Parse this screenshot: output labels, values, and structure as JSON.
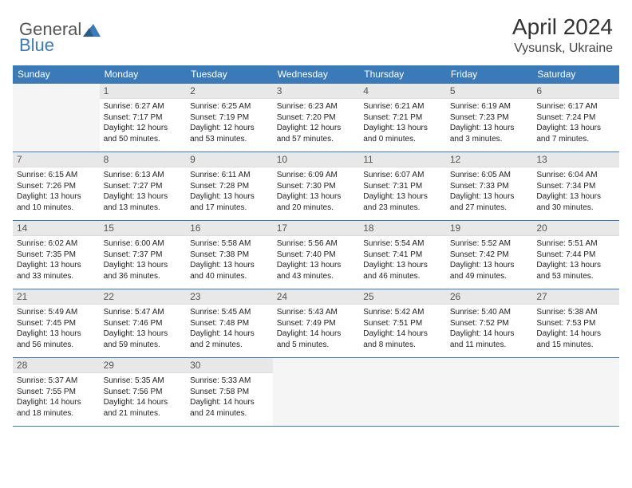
{
  "brand": {
    "part1": "General",
    "part2": "Blue"
  },
  "title": {
    "month_year": "April 2024",
    "location": "Vysunsk, Ukraine"
  },
  "colors": {
    "accent": "#3a7ab8",
    "daynum_bg": "#e8e8e8",
    "text": "#222"
  },
  "weekdays": [
    "Sunday",
    "Monday",
    "Tuesday",
    "Wednesday",
    "Thursday",
    "Friday",
    "Saturday"
  ],
  "weeks": [
    [
      null,
      {
        "n": "1",
        "sr": "Sunrise: 6:27 AM",
        "ss": "Sunset: 7:17 PM",
        "d1": "Daylight: 12 hours",
        "d2": "and 50 minutes."
      },
      {
        "n": "2",
        "sr": "Sunrise: 6:25 AM",
        "ss": "Sunset: 7:19 PM",
        "d1": "Daylight: 12 hours",
        "d2": "and 53 minutes."
      },
      {
        "n": "3",
        "sr": "Sunrise: 6:23 AM",
        "ss": "Sunset: 7:20 PM",
        "d1": "Daylight: 12 hours",
        "d2": "and 57 minutes."
      },
      {
        "n": "4",
        "sr": "Sunrise: 6:21 AM",
        "ss": "Sunset: 7:21 PM",
        "d1": "Daylight: 13 hours",
        "d2": "and 0 minutes."
      },
      {
        "n": "5",
        "sr": "Sunrise: 6:19 AM",
        "ss": "Sunset: 7:23 PM",
        "d1": "Daylight: 13 hours",
        "d2": "and 3 minutes."
      },
      {
        "n": "6",
        "sr": "Sunrise: 6:17 AM",
        "ss": "Sunset: 7:24 PM",
        "d1": "Daylight: 13 hours",
        "d2": "and 7 minutes."
      }
    ],
    [
      {
        "n": "7",
        "sr": "Sunrise: 6:15 AM",
        "ss": "Sunset: 7:26 PM",
        "d1": "Daylight: 13 hours",
        "d2": "and 10 minutes."
      },
      {
        "n": "8",
        "sr": "Sunrise: 6:13 AM",
        "ss": "Sunset: 7:27 PM",
        "d1": "Daylight: 13 hours",
        "d2": "and 13 minutes."
      },
      {
        "n": "9",
        "sr": "Sunrise: 6:11 AM",
        "ss": "Sunset: 7:28 PM",
        "d1": "Daylight: 13 hours",
        "d2": "and 17 minutes."
      },
      {
        "n": "10",
        "sr": "Sunrise: 6:09 AM",
        "ss": "Sunset: 7:30 PM",
        "d1": "Daylight: 13 hours",
        "d2": "and 20 minutes."
      },
      {
        "n": "11",
        "sr": "Sunrise: 6:07 AM",
        "ss": "Sunset: 7:31 PM",
        "d1": "Daylight: 13 hours",
        "d2": "and 23 minutes."
      },
      {
        "n": "12",
        "sr": "Sunrise: 6:05 AM",
        "ss": "Sunset: 7:33 PM",
        "d1": "Daylight: 13 hours",
        "d2": "and 27 minutes."
      },
      {
        "n": "13",
        "sr": "Sunrise: 6:04 AM",
        "ss": "Sunset: 7:34 PM",
        "d1": "Daylight: 13 hours",
        "d2": "and 30 minutes."
      }
    ],
    [
      {
        "n": "14",
        "sr": "Sunrise: 6:02 AM",
        "ss": "Sunset: 7:35 PM",
        "d1": "Daylight: 13 hours",
        "d2": "and 33 minutes."
      },
      {
        "n": "15",
        "sr": "Sunrise: 6:00 AM",
        "ss": "Sunset: 7:37 PM",
        "d1": "Daylight: 13 hours",
        "d2": "and 36 minutes."
      },
      {
        "n": "16",
        "sr": "Sunrise: 5:58 AM",
        "ss": "Sunset: 7:38 PM",
        "d1": "Daylight: 13 hours",
        "d2": "and 40 minutes."
      },
      {
        "n": "17",
        "sr": "Sunrise: 5:56 AM",
        "ss": "Sunset: 7:40 PM",
        "d1": "Daylight: 13 hours",
        "d2": "and 43 minutes."
      },
      {
        "n": "18",
        "sr": "Sunrise: 5:54 AM",
        "ss": "Sunset: 7:41 PM",
        "d1": "Daylight: 13 hours",
        "d2": "and 46 minutes."
      },
      {
        "n": "19",
        "sr": "Sunrise: 5:52 AM",
        "ss": "Sunset: 7:42 PM",
        "d1": "Daylight: 13 hours",
        "d2": "and 49 minutes."
      },
      {
        "n": "20",
        "sr": "Sunrise: 5:51 AM",
        "ss": "Sunset: 7:44 PM",
        "d1": "Daylight: 13 hours",
        "d2": "and 53 minutes."
      }
    ],
    [
      {
        "n": "21",
        "sr": "Sunrise: 5:49 AM",
        "ss": "Sunset: 7:45 PM",
        "d1": "Daylight: 13 hours",
        "d2": "and 56 minutes."
      },
      {
        "n": "22",
        "sr": "Sunrise: 5:47 AM",
        "ss": "Sunset: 7:46 PM",
        "d1": "Daylight: 13 hours",
        "d2": "and 59 minutes."
      },
      {
        "n": "23",
        "sr": "Sunrise: 5:45 AM",
        "ss": "Sunset: 7:48 PM",
        "d1": "Daylight: 14 hours",
        "d2": "and 2 minutes."
      },
      {
        "n": "24",
        "sr": "Sunrise: 5:43 AM",
        "ss": "Sunset: 7:49 PM",
        "d1": "Daylight: 14 hours",
        "d2": "and 5 minutes."
      },
      {
        "n": "25",
        "sr": "Sunrise: 5:42 AM",
        "ss": "Sunset: 7:51 PM",
        "d1": "Daylight: 14 hours",
        "d2": "and 8 minutes."
      },
      {
        "n": "26",
        "sr": "Sunrise: 5:40 AM",
        "ss": "Sunset: 7:52 PM",
        "d1": "Daylight: 14 hours",
        "d2": "and 11 minutes."
      },
      {
        "n": "27",
        "sr": "Sunrise: 5:38 AM",
        "ss": "Sunset: 7:53 PM",
        "d1": "Daylight: 14 hours",
        "d2": "and 15 minutes."
      }
    ],
    [
      {
        "n": "28",
        "sr": "Sunrise: 5:37 AM",
        "ss": "Sunset: 7:55 PM",
        "d1": "Daylight: 14 hours",
        "d2": "and 18 minutes."
      },
      {
        "n": "29",
        "sr": "Sunrise: 5:35 AM",
        "ss": "Sunset: 7:56 PM",
        "d1": "Daylight: 14 hours",
        "d2": "and 21 minutes."
      },
      {
        "n": "30",
        "sr": "Sunrise: 5:33 AM",
        "ss": "Sunset: 7:58 PM",
        "d1": "Daylight: 14 hours",
        "d2": "and 24 minutes."
      },
      null,
      null,
      null,
      null
    ]
  ]
}
